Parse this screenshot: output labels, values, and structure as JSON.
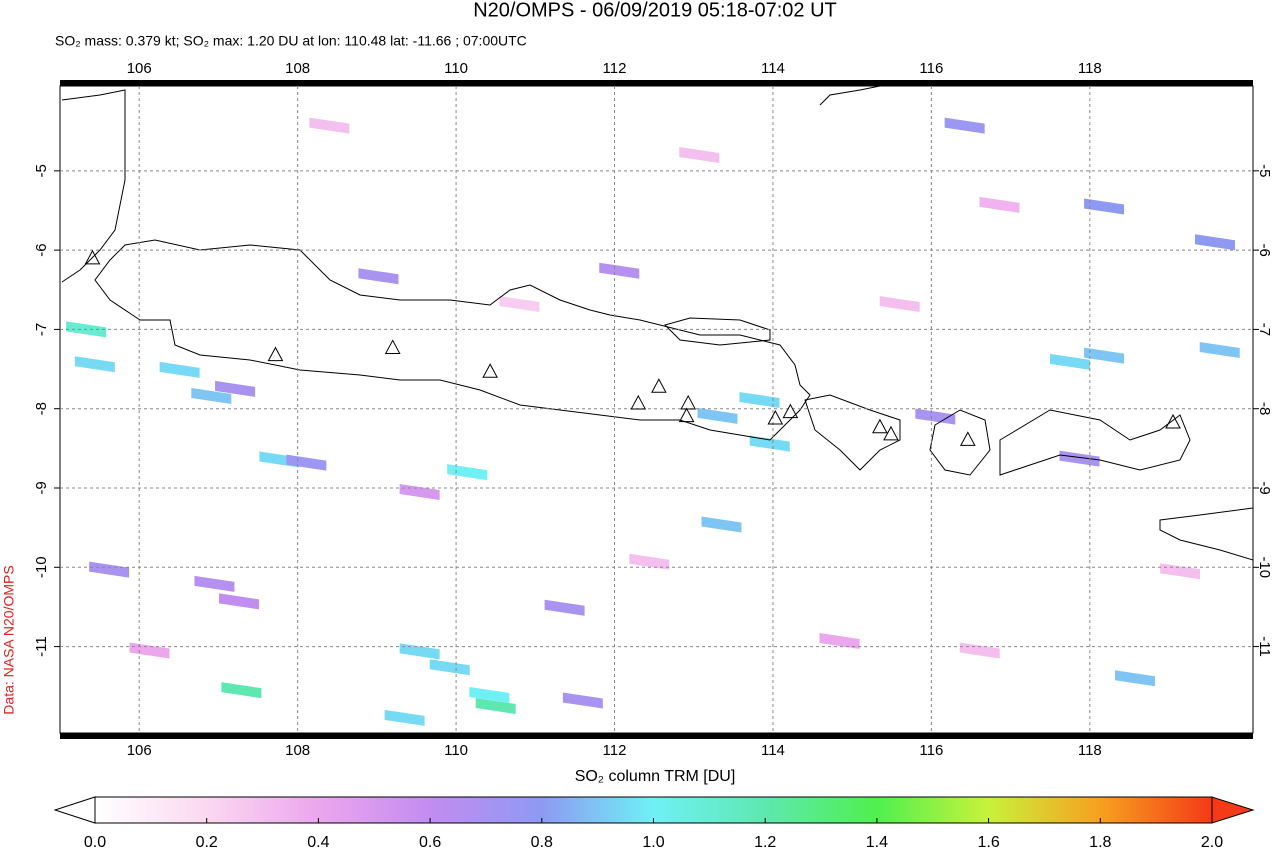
{
  "header": {
    "title": "N20/OMPS - 06/09/2019 05:18-07:02 UT",
    "subtitle": "SO₂ mass: 0.379 kt; SO₂ max: 1.20 DU at lon: 110.48 lat: -11.66 ; 07:00UTC"
  },
  "credit": "Data: NASA N20/OMPS",
  "map": {
    "lonlim": [
      105,
      120.06
    ],
    "latlim": [
      -12.09,
      -3.93
    ],
    "lonticks": [
      106,
      108,
      110,
      112,
      114,
      116,
      118
    ],
    "latticks": [
      -5,
      -6,
      -7,
      -8,
      -9,
      -10,
      -11
    ],
    "grid": true,
    "volcanoes": [
      [
        105.41,
        -6.11
      ],
      [
        107.72,
        -7.33
      ],
      [
        109.2,
        -7.24
      ],
      [
        110.43,
        -7.54
      ],
      [
        112.3,
        -7.94
      ],
      [
        112.56,
        -7.73
      ],
      [
        112.93,
        -7.94
      ],
      [
        112.91,
        -8.1
      ],
      [
        114.03,
        -8.13
      ],
      [
        114.22,
        -8.05
      ],
      [
        115.35,
        -8.24
      ],
      [
        115.49,
        -8.33
      ],
      [
        116.46,
        -8.4
      ],
      [
        119.05,
        -8.18
      ]
    ],
    "pixels": [
      {
        "lon": 110.14,
        "lat": -8.8,
        "value": 1.0
      },
      {
        "lon": 110.5,
        "lat": -11.75,
        "value": 1.2
      },
      {
        "lon": 110.42,
        "lat": -11.61,
        "value": 1.0
      },
      {
        "lon": 109.54,
        "lat": -11.06,
        "value": 0.95
      },
      {
        "lon": 109.92,
        "lat": -11.26,
        "value": 0.95
      },
      {
        "lon": 109.35,
        "lat": -11.9,
        "value": 0.95
      },
      {
        "lon": 107.29,
        "lat": -11.55,
        "value": 1.2
      },
      {
        "lon": 107.77,
        "lat": -8.64,
        "value": 0.95
      },
      {
        "lon": 108.11,
        "lat": -8.68,
        "value": 0.75
      },
      {
        "lon": 109.02,
        "lat": -6.33,
        "value": 0.7
      },
      {
        "lon": 106.51,
        "lat": -7.51,
        "value": 0.95
      },
      {
        "lon": 106.91,
        "lat": -7.84,
        "value": 0.9
      },
      {
        "lon": 107.21,
        "lat": -7.75,
        "value": 0.7
      },
      {
        "lon": 113.35,
        "lat": -9.46,
        "value": 0.9
      },
      {
        "lon": 113.83,
        "lat": -7.89,
        "value": 0.95
      },
      {
        "lon": 113.3,
        "lat": -8.09,
        "value": 0.9
      },
      {
        "lon": 113.96,
        "lat": -8.44,
        "value": 0.95
      },
      {
        "lon": 105.33,
        "lat": -7.0,
        "value": 1.1
      },
      {
        "lon": 105.44,
        "lat": -7.44,
        "value": 0.95
      },
      {
        "lon": 111.37,
        "lat": -10.51,
        "value": 0.7
      },
      {
        "lon": 111.6,
        "lat": -11.68,
        "value": 0.7
      },
      {
        "lon": 112.06,
        "lat": -6.26,
        "value": 0.65
      },
      {
        "lon": 116.42,
        "lat": -4.43,
        "value": 0.75
      },
      {
        "lon": 118.18,
        "lat": -5.45,
        "value": 0.8
      },
      {
        "lon": 119.58,
        "lat": -5.9,
        "value": 0.8
      },
      {
        "lon": 117.75,
        "lat": -7.41,
        "value": 0.95
      },
      {
        "lon": 118.18,
        "lat": -7.33,
        "value": 0.9
      },
      {
        "lon": 119.64,
        "lat": -7.26,
        "value": 0.9
      },
      {
        "lon": 118.57,
        "lat": -11.4,
        "value": 0.9
      },
      {
        "lon": 105.62,
        "lat": -10.03,
        "value": 0.7
      },
      {
        "lon": 117.87,
        "lat": -8.63,
        "value": 0.7
      },
      {
        "lon": 116.05,
        "lat": -8.1,
        "value": 0.7
      },
      {
        "lon": 106.95,
        "lat": -10.21,
        "value": 0.65
      },
      {
        "lon": 107.26,
        "lat": -10.43,
        "value": 0.6
      },
      {
        "lon": 106.13,
        "lat": -11.05,
        "value": 0.4
      },
      {
        "lon": 109.54,
        "lat": -9.05,
        "value": 0.5
      },
      {
        "lon": 114.84,
        "lat": -10.93,
        "value": 0.4
      },
      {
        "lon": 116.86,
        "lat": -5.43,
        "value": 0.35
      },
      {
        "lon": 108.4,
        "lat": -4.43,
        "value": 0.3
      },
      {
        "lon": 113.07,
        "lat": -4.8,
        "value": 0.3
      },
      {
        "lon": 115.6,
        "lat": -6.68,
        "value": 0.3
      },
      {
        "lon": 110.8,
        "lat": -6.68,
        "value": 0.25
      },
      {
        "lon": 112.44,
        "lat": -9.93,
        "value": 0.3
      },
      {
        "lon": 116.61,
        "lat": -11.05,
        "value": 0.3
      },
      {
        "lon": 119.14,
        "lat": -10.05,
        "value": 0.3
      }
    ]
  },
  "colorbar": {
    "label": "SO₂ column TRM [DU]",
    "lim": [
      0,
      2
    ],
    "ticks": [
      {
        "value": 0,
        "label": "0.0"
      },
      {
        "value": 0.2,
        "label": "0.2"
      },
      {
        "value": 0.4,
        "label": "0.4"
      },
      {
        "value": 0.6,
        "label": "0.6"
      },
      {
        "value": 0.8,
        "label": "0.8"
      },
      {
        "value": 1.0,
        "label": "1.0"
      },
      {
        "value": 1.2,
        "label": "1.2"
      },
      {
        "value": 1.4,
        "label": "1.4"
      },
      {
        "value": 1.6,
        "label": "1.6"
      },
      {
        "value": 1.8,
        "label": "1.8"
      },
      {
        "value": 2.0,
        "label": "2.0"
      }
    ],
    "colors": [
      "#ffffff",
      "#fbd8f0",
      "#eca6ee",
      "#c28cf0",
      "#8e9af2",
      "#6ff0f5",
      "#5ee8b0",
      "#4ff04f",
      "#c8f23a",
      "#f7a020",
      "#f43a16"
    ]
  }
}
